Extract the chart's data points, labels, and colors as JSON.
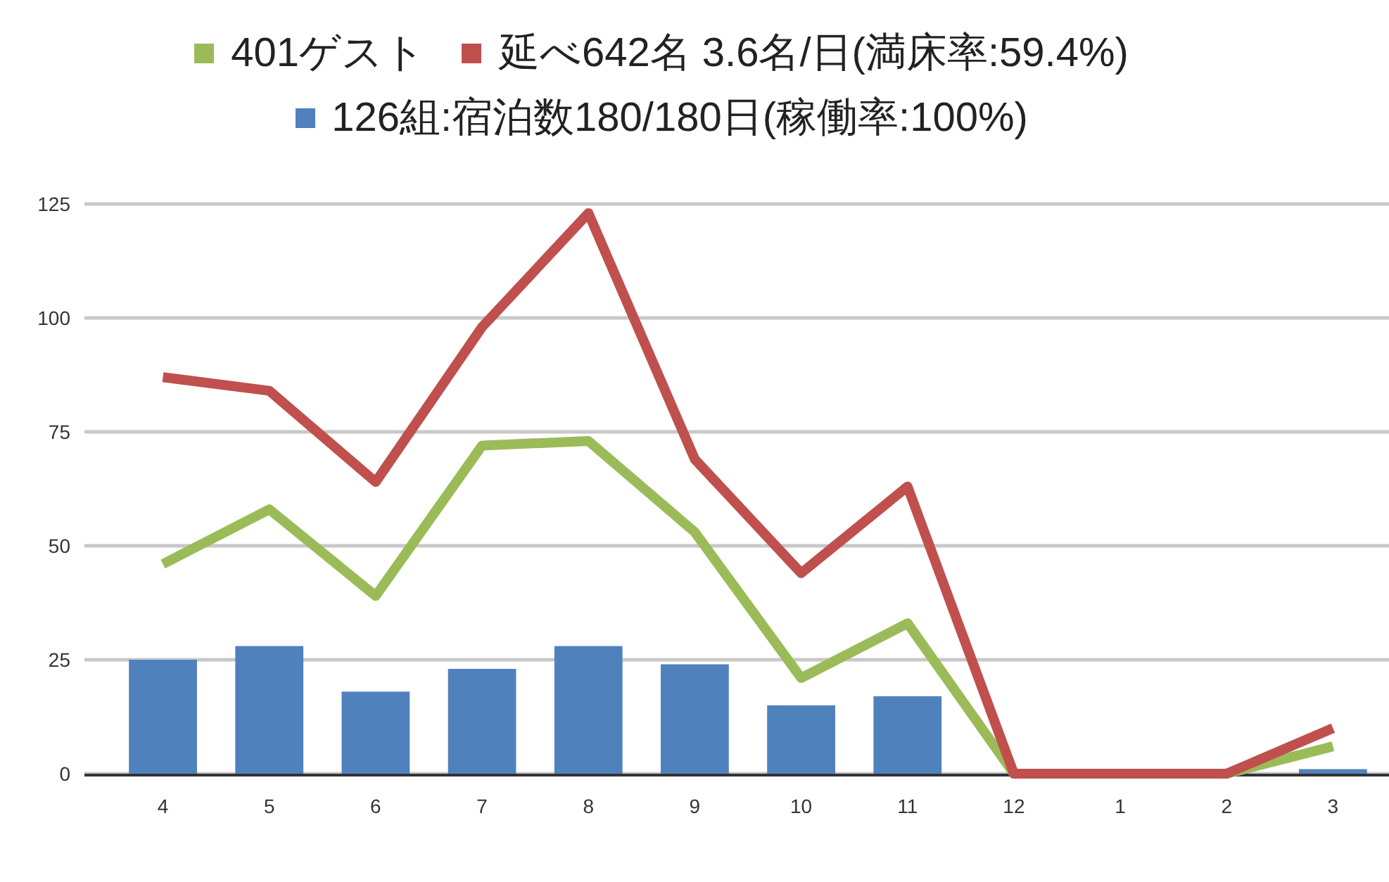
{
  "chart_data": {
    "type": "bar",
    "categories": [
      "4",
      "5",
      "6",
      "7",
      "8",
      "9",
      "10",
      "11",
      "12",
      "1",
      "2",
      "3"
    ],
    "series": [
      {
        "name": "401ゲスト",
        "type": "line",
        "color": "#9bbb59",
        "values": [
          46,
          58,
          39,
          72,
          73,
          53,
          21,
          33,
          0,
          0,
          0,
          6
        ]
      },
      {
        "name": "延べ642名 3.6名/日(満床率:59.4%)",
        "type": "line",
        "color": "#c0504d",
        "values": [
          87,
          84,
          64,
          98,
          123,
          69,
          44,
          63,
          0,
          0,
          0,
          10
        ]
      },
      {
        "name": "126組:宿泊数180/180日(稼働率:100%)",
        "color": "#4f81bd",
        "values": [
          25,
          28,
          18,
          23,
          28,
          24,
          15,
          17,
          0,
          0,
          0,
          1
        ]
      }
    ],
    "ylim": [
      0,
      125
    ],
    "yticks": [
      0,
      25,
      50,
      75,
      100,
      125
    ],
    "grid": "y",
    "legend": "top",
    "marker": "none"
  }
}
